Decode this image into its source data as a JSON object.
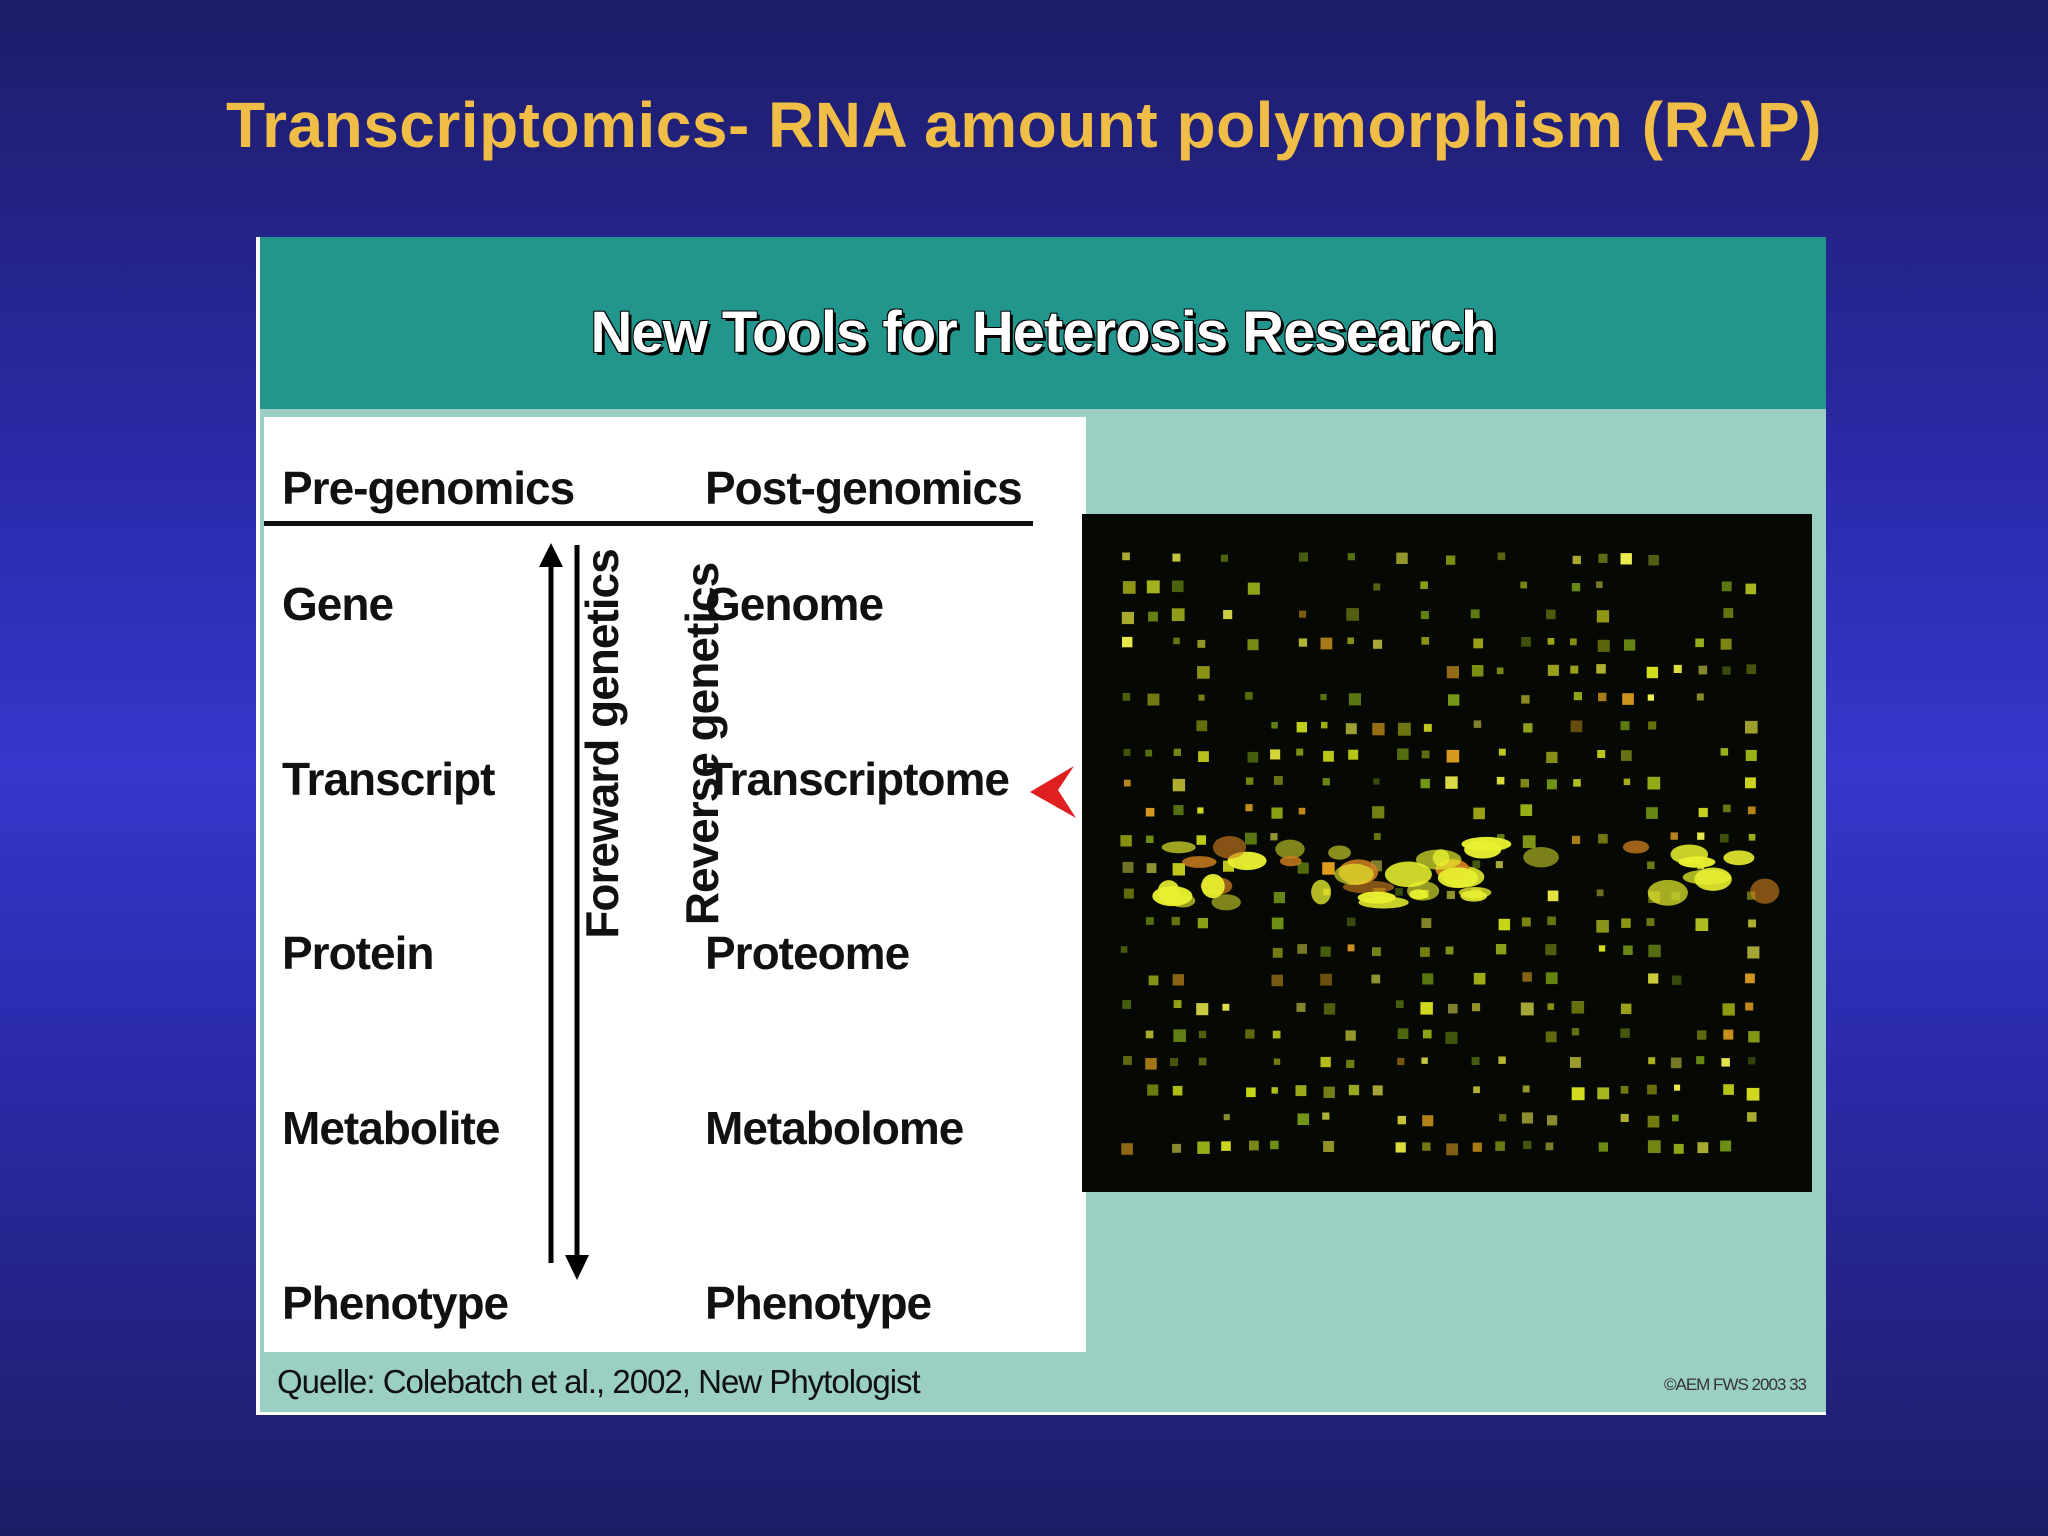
{
  "slide": {
    "title": "Transcriptomics- RNA amount polymorphism (RAP)",
    "title_color": "#f0be46",
    "background_color": "#2a2aa8"
  },
  "figure": {
    "title": "New Tools for Heterosis Research",
    "header_color": "#22958c",
    "panel_color": "#9ccfc4",
    "columns": {
      "left_header": "Pre-genomics",
      "right_header": "Post-genomics"
    },
    "rows": [
      {
        "pre": "Gene",
        "post": "Genome"
      },
      {
        "pre": "Transcript",
        "post": "Transcriptome"
      },
      {
        "pre": "Protein",
        "post": "Proteome"
      },
      {
        "pre": "Metabolite",
        "post": "Metabolome"
      },
      {
        "pre": "Phenotype",
        "post": "Phenotype"
      }
    ],
    "arrows": {
      "forward_label": "Foreward genetics",
      "reverse_label": "Reverse genetics"
    },
    "pointer_target": "Transcriptome",
    "pointer_color": "#e02020",
    "image": {
      "description_icon": "microarray-image"
    },
    "citation": "Quelle: Colebatch et al., 2002, New Phytologist",
    "copyright": "©AEM FWS 2003 33"
  }
}
